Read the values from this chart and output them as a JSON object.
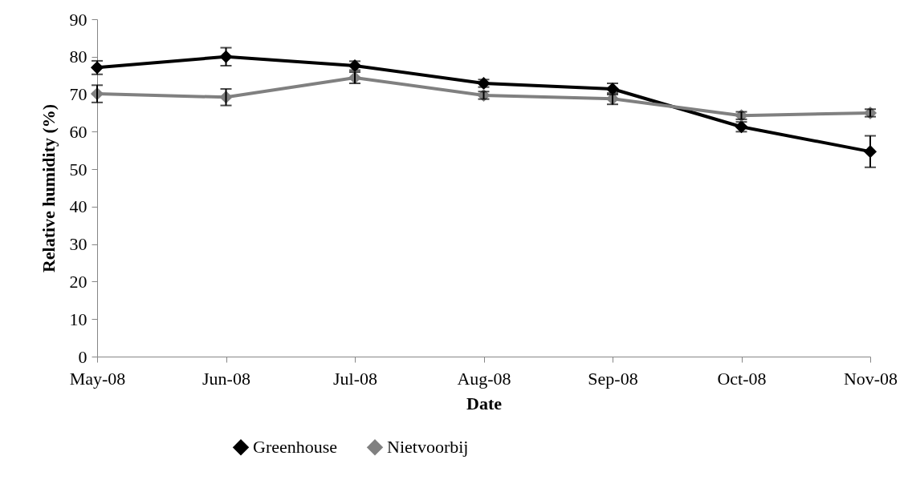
{
  "chart_data": {
    "type": "line",
    "xlabel": "Date",
    "ylabel": "Relative humidity (%)",
    "categories": [
      "May-08",
      "Jun-08",
      "Jul-08",
      "Aug-08",
      "Sep-08",
      "Oct-08",
      "Nov-08"
    ],
    "series": [
      {
        "name": "Greenhouse",
        "color": "#000000",
        "values": [
          77.1,
          80.0,
          77.6,
          72.9,
          71.4,
          61.3,
          54.7
        ],
        "errors": [
          1.8,
          2.4,
          1.2,
          1.0,
          1.5,
          1.3,
          4.2
        ]
      },
      {
        "name": "Nietvoorbij",
        "color": "#808080",
        "values": [
          70.1,
          69.2,
          74.4,
          69.7,
          68.8,
          64.3,
          65.0
        ],
        "errors": [
          2.3,
          2.2,
          1.5,
          1.0,
          1.5,
          1.0,
          1.0
        ]
      }
    ],
    "ylim": [
      0,
      90
    ],
    "yticks": [
      0,
      10,
      20,
      30,
      40,
      50,
      60,
      70,
      80,
      90
    ],
    "grid": false,
    "legend": "bottom",
    "marker": "diamond",
    "line_style": "solid"
  }
}
